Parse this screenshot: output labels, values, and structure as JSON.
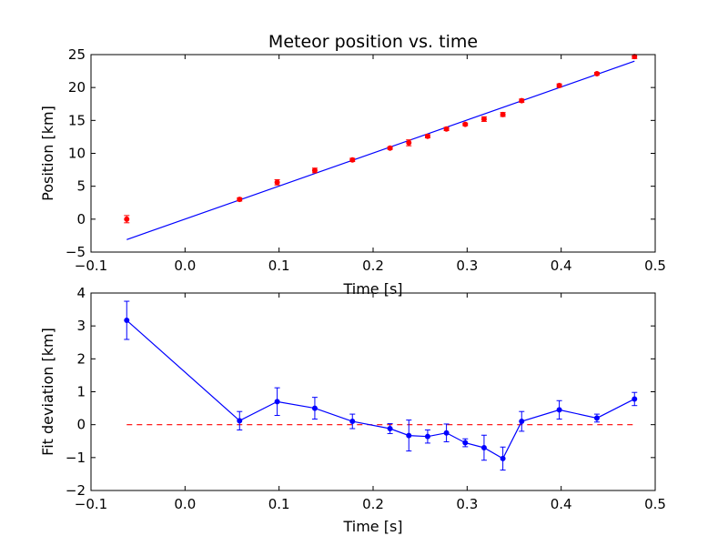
{
  "chart_data": [
    {
      "type": "scatter",
      "title": "Meteor position vs. time",
      "xlabel": "Time [s]",
      "ylabel": "Position [km]",
      "xlim": [
        -0.1,
        0.5
      ],
      "ylim": [
        -5,
        25
      ],
      "xticks": [
        -0.1,
        0.0,
        0.1,
        0.2,
        0.3,
        0.4,
        0.5
      ],
      "yticks": [
        -5,
        0,
        5,
        10,
        15,
        20,
        25
      ],
      "xtick_labels": [
        "−0.1",
        "0.0",
        "0.1",
        "0.2",
        "0.3",
        "0.4",
        "0.5"
      ],
      "ytick_labels": [
        "−5",
        "0",
        "5",
        "10",
        "15",
        "20",
        "25"
      ],
      "grid": false,
      "points": {
        "color": "#ff0000",
        "x": [
          -0.062,
          0.058,
          0.098,
          0.138,
          0.178,
          0.218,
          0.238,
          0.258,
          0.278,
          0.298,
          0.318,
          0.338,
          0.358,
          0.398,
          0.438,
          0.478
        ],
        "y": [
          0.0,
          3.0,
          5.6,
          7.4,
          9.0,
          10.8,
          11.6,
          12.6,
          13.7,
          14.4,
          15.2,
          15.9,
          18.0,
          20.3,
          22.1,
          24.7
        ],
        "yerr": [
          0.55,
          0.25,
          0.4,
          0.35,
          0.25,
          0.2,
          0.45,
          0.25,
          0.25,
          0.2,
          0.35,
          0.3,
          0.25,
          0.25,
          0.2,
          0.3
        ]
      },
      "fit_line": {
        "color": "#0000ff",
        "x": [
          -0.062,
          0.478
        ],
        "y": [
          -3.1,
          24.0
        ]
      }
    },
    {
      "type": "line",
      "xlabel": "Time [s]",
      "ylabel": "Fit deviation [km]",
      "xlim": [
        -0.1,
        0.5
      ],
      "ylim": [
        -2,
        4
      ],
      "xticks": [
        -0.1,
        0.0,
        0.1,
        0.2,
        0.3,
        0.4,
        0.5
      ],
      "yticks": [
        -2,
        -1,
        0,
        1,
        2,
        3,
        4
      ],
      "xtick_labels": [
        "−0.1",
        "0.0",
        "0.1",
        "0.2",
        "0.3",
        "0.4",
        "0.5"
      ],
      "ytick_labels": [
        "−2",
        "−1",
        "0",
        "1",
        "2",
        "3",
        "4"
      ],
      "grid": false,
      "series": [
        {
          "color": "#0000ff",
          "x": [
            -0.062,
            0.058,
            0.098,
            0.138,
            0.178,
            0.218,
            0.238,
            0.258,
            0.278,
            0.298,
            0.318,
            0.338,
            0.358,
            0.398,
            0.438,
            0.478
          ],
          "y": [
            3.17,
            0.12,
            0.7,
            0.5,
            0.1,
            -0.12,
            -0.33,
            -0.36,
            -0.25,
            -0.55,
            -0.7,
            -1.03,
            0.1,
            0.45,
            0.2,
            0.78
          ],
          "yerr": [
            0.58,
            0.28,
            0.42,
            0.33,
            0.22,
            0.15,
            0.47,
            0.2,
            0.27,
            0.12,
            0.38,
            0.35,
            0.3,
            0.28,
            0.12,
            0.2
          ]
        }
      ],
      "reference_line": {
        "y": 0,
        "color": "#ff0000",
        "style": "dashed"
      }
    }
  ]
}
